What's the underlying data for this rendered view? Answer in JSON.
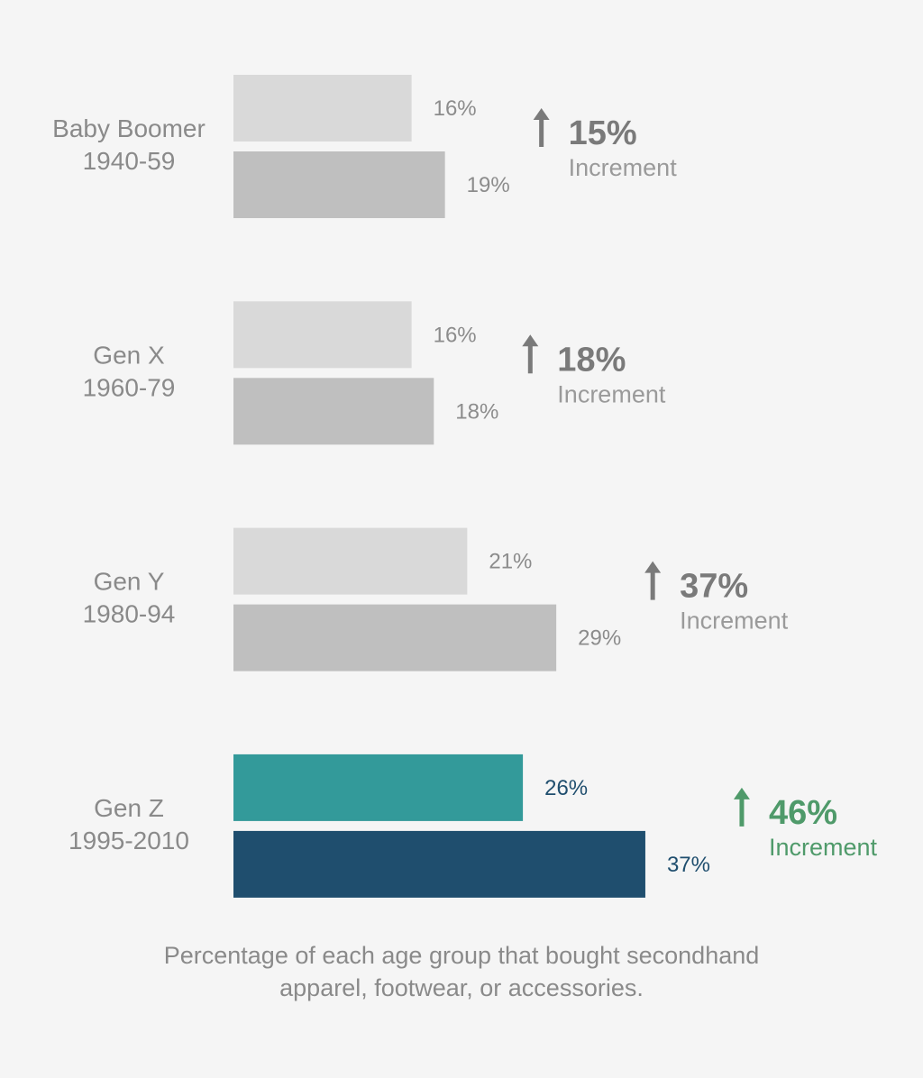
{
  "chart_data": {
    "type": "bar",
    "orientation": "horizontal",
    "groups": [
      {
        "name": "Baby Boomer",
        "years": "1940-59",
        "values": [
          16,
          19
        ],
        "value_labels": [
          "16%",
          "19%"
        ],
        "increment": "15%",
        "increment_label": "Increment",
        "bar_colors": [
          "#d9d9d9",
          "#bfbfbf"
        ],
        "label_color": "#8c8c8c",
        "accent_color": "#7a7a7a"
      },
      {
        "name": "Gen X",
        "years": "1960-79",
        "values": [
          16,
          18
        ],
        "value_labels": [
          "16%",
          "18%"
        ],
        "increment": "18%",
        "increment_label": "Increment",
        "bar_colors": [
          "#d9d9d9",
          "#bfbfbf"
        ],
        "label_color": "#8c8c8c",
        "accent_color": "#7a7a7a"
      },
      {
        "name": "Gen Y",
        "years": "1980-94",
        "values": [
          21,
          29
        ],
        "value_labels": [
          "21%",
          "29%"
        ],
        "increment": "37%",
        "increment_label": "Increment",
        "bar_colors": [
          "#d9d9d9",
          "#bfbfbf"
        ],
        "label_color": "#8c8c8c",
        "accent_color": "#7a7a7a"
      },
      {
        "name": "Gen Z",
        "years": "1995-2010",
        "values": [
          26,
          37
        ],
        "value_labels": [
          "26%",
          "37%"
        ],
        "increment": "46%",
        "increment_label": "Increment",
        "bar_colors": [
          "#339a9a",
          "#1f4e6e"
        ],
        "label_color": "#1f4e6e",
        "accent_color": "#4f9a6a"
      }
    ],
    "caption_lines": [
      "Percentage of each age group that bought secondhand",
      "apparel, footwear, or accessories."
    ],
    "colors": {
      "category_text": "#8a8a8a",
      "increment_text": "#9a9a9a",
      "background": "#f5f5f5"
    },
    "xlim": [
      0,
      37
    ],
    "grid": false
  }
}
